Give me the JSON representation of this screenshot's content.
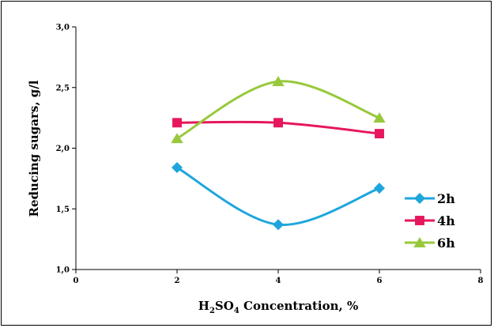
{
  "chart_data": {
    "type": "line",
    "xlabel": {
      "prefix": "H",
      "sub1": "2",
      "mid": "SO",
      "sub2": "4",
      "suffix": " Concentration, %"
    },
    "ylabel": "Reducing sugars, g/l",
    "xlim": [
      0,
      8
    ],
    "ylim": [
      1.0,
      3.0
    ],
    "x_ticks": [
      0,
      2,
      4,
      6,
      8
    ],
    "x_tick_labels": [
      "0",
      "2",
      "4",
      "6",
      "8"
    ],
    "y_ticks": [
      1.0,
      1.5,
      2.0,
      2.5,
      3.0
    ],
    "y_tick_labels": [
      "1,0",
      "1,5",
      "2,0",
      "2,5",
      "3,0"
    ],
    "grid": false,
    "smooth": true,
    "legend_position": "right",
    "series": [
      {
        "name": "2h",
        "color": "#1EA6DC",
        "marker": "diamond",
        "x": [
          2,
          4,
          6
        ],
        "y": [
          1.84,
          1.37,
          1.67
        ]
      },
      {
        "name": "4h",
        "color": "#E6175C",
        "marker": "square",
        "x": [
          2,
          4,
          6
        ],
        "y": [
          2.21,
          2.21,
          2.12
        ]
      },
      {
        "name": "6h",
        "color": "#98C93C",
        "marker": "triangle",
        "x": [
          2,
          4,
          6
        ],
        "y": [
          2.08,
          2.55,
          2.25
        ]
      }
    ]
  }
}
